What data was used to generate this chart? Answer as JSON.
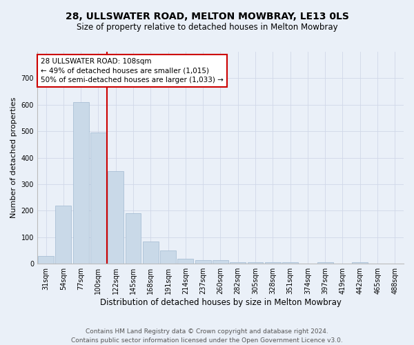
{
  "title": "28, ULLSWATER ROAD, MELTON MOWBRAY, LE13 0LS",
  "subtitle": "Size of property relative to detached houses in Melton Mowbray",
  "xlabel": "Distribution of detached houses by size in Melton Mowbray",
  "ylabel": "Number of detached properties",
  "categories": [
    "31sqm",
    "54sqm",
    "77sqm",
    "100sqm",
    "122sqm",
    "145sqm",
    "168sqm",
    "191sqm",
    "214sqm",
    "237sqm",
    "260sqm",
    "282sqm",
    "305sqm",
    "328sqm",
    "351sqm",
    "374sqm",
    "397sqm",
    "419sqm",
    "442sqm",
    "465sqm",
    "488sqm"
  ],
  "values": [
    30,
    218,
    610,
    495,
    350,
    190,
    83,
    50,
    18,
    13,
    13,
    7,
    5,
    5,
    7,
    0,
    5,
    0,
    5,
    0,
    0
  ],
  "bar_color": "#c9d9e8",
  "bar_edge_color": "#a0b8d0",
  "vline_x": 3.5,
  "vline_color": "#cc0000",
  "annotation_text": "28 ULLSWATER ROAD: 108sqm\n← 49% of detached houses are smaller (1,015)\n50% of semi-detached houses are larger (1,033) →",
  "annotation_box_color": "#ffffff",
  "annotation_box_edge_color": "#cc0000",
  "ylim": [
    0,
    800
  ],
  "yticks": [
    0,
    100,
    200,
    300,
    400,
    500,
    600,
    700,
    800
  ],
  "grid_color": "#d0d8e8",
  "background_color": "#eaf0f8",
  "footer_line1": "Contains HM Land Registry data © Crown copyright and database right 2024.",
  "footer_line2": "Contains public sector information licensed under the Open Government Licence v3.0.",
  "title_fontsize": 10,
  "subtitle_fontsize": 8.5,
  "xlabel_fontsize": 8.5,
  "ylabel_fontsize": 8,
  "tick_fontsize": 7,
  "annotation_fontsize": 7.5,
  "footer_fontsize": 6.5
}
